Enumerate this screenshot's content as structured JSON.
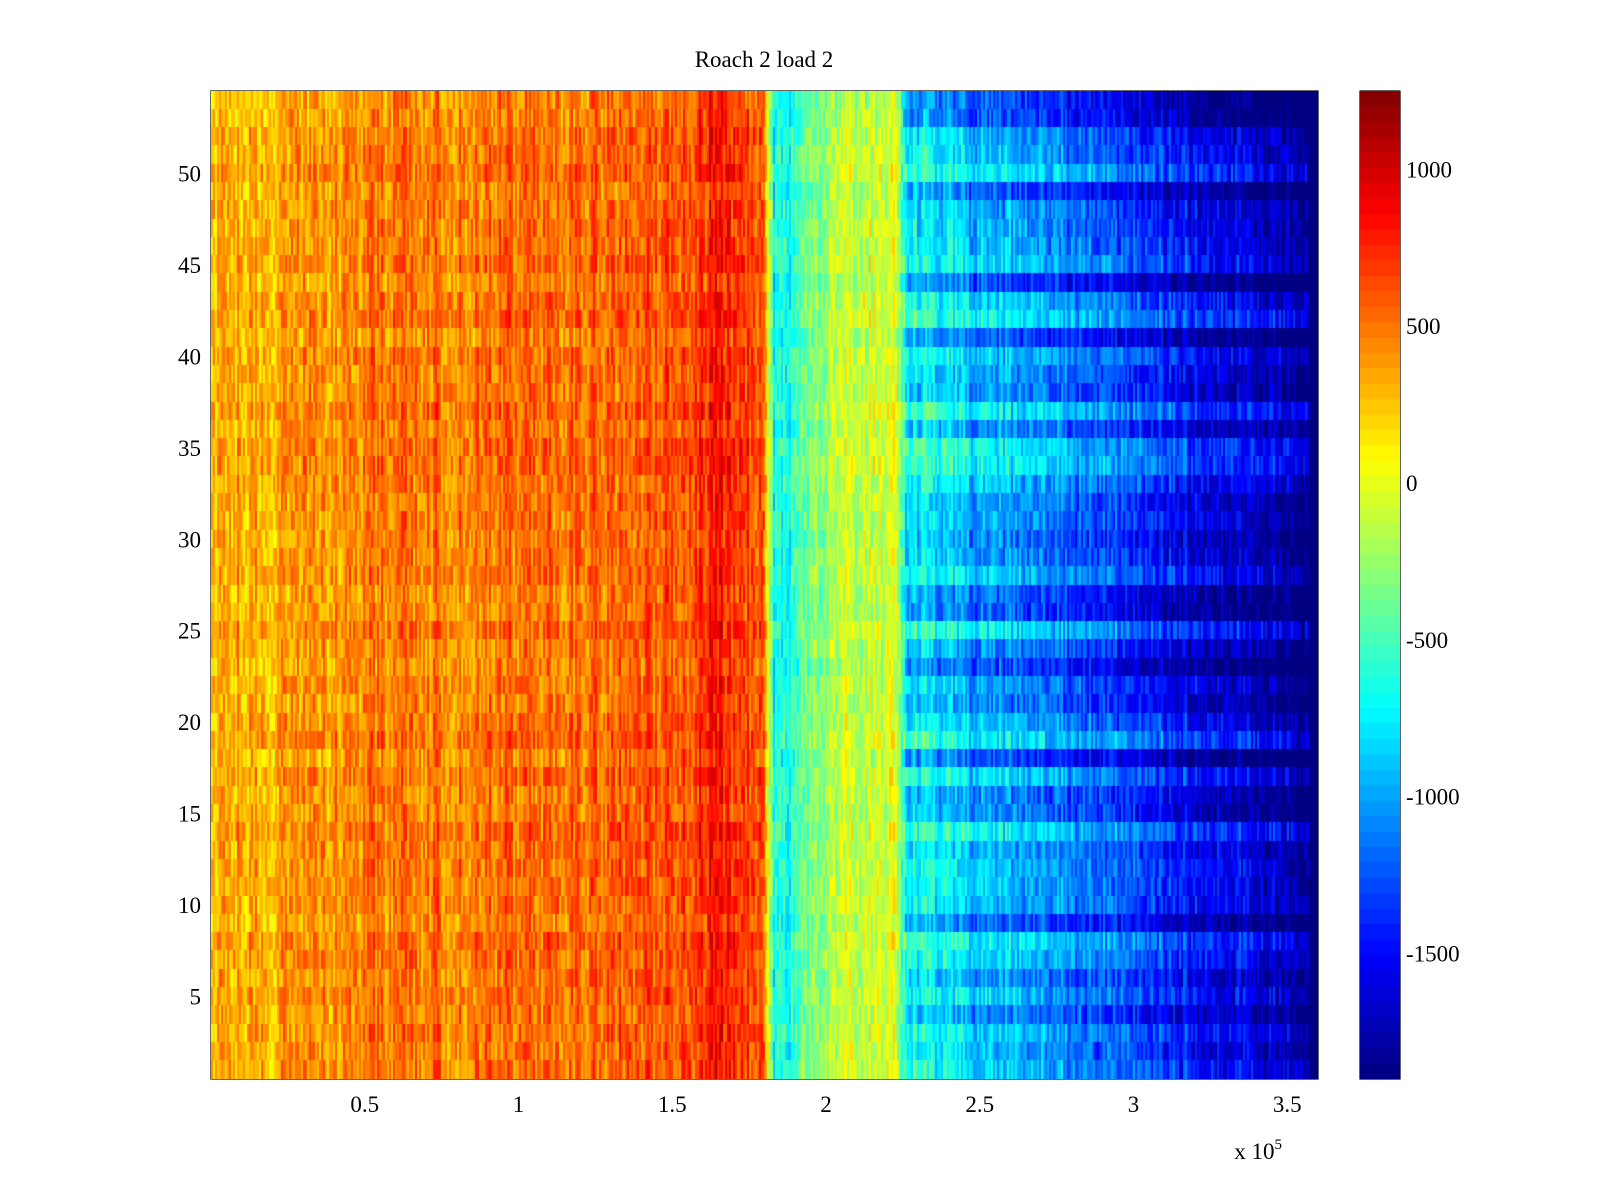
{
  "chart_data": {
    "type": "heatmap",
    "title": "Roach 2 load 2",
    "xlabel": "",
    "ylabel": "",
    "x_multiplier_label": "x 10",
    "x_multiplier_exponent": "5",
    "xlim": [
      0,
      3.6
    ],
    "ylim": [
      0.5,
      54.5
    ],
    "x_ticks": [
      0.5,
      1,
      1.5,
      2,
      2.5,
      3,
      3.5
    ],
    "x_tick_labels": [
      "0.5",
      "1",
      "1.5",
      "2",
      "2.5",
      "3",
      "3.5"
    ],
    "y_ticks": [
      5,
      10,
      15,
      20,
      25,
      30,
      35,
      40,
      45,
      50
    ],
    "y_tick_labels": [
      "5",
      "10",
      "15",
      "20",
      "25",
      "30",
      "35",
      "40",
      "45",
      "50"
    ],
    "rows": 54,
    "colormap": "jet",
    "clim": [
      -1900,
      1250
    ],
    "colorbar_ticks": [
      1000,
      500,
      0,
      -500,
      -1000,
      -1500
    ],
    "colorbar_tick_labels": [
      "1000",
      "500",
      "0",
      "-500",
      "-1000",
      "-1500"
    ],
    "column_profile": [
      {
        "x": 0.0,
        "value": 300
      },
      {
        "x": 0.3,
        "value": 420
      },
      {
        "x": 0.6,
        "value": 500
      },
      {
        "x": 1.0,
        "value": 520
      },
      {
        "x": 1.3,
        "value": 560
      },
      {
        "x": 1.5,
        "value": 640
      },
      {
        "x": 1.65,
        "value": 800
      },
      {
        "x": 1.8,
        "value": 620
      },
      {
        "x": 1.83,
        "value": -650
      },
      {
        "x": 1.9,
        "value": -550
      },
      {
        "x": 2.0,
        "value": -180
      },
      {
        "x": 2.1,
        "value": -80
      },
      {
        "x": 2.23,
        "value": -60
      },
      {
        "x": 2.26,
        "value": -700
      },
      {
        "x": 2.5,
        "value": -950
      },
      {
        "x": 2.8,
        "value": -1150
      },
      {
        "x": 3.1,
        "value": -1400
      },
      {
        "x": 3.35,
        "value": -1650
      },
      {
        "x": 3.6,
        "value": -1850
      }
    ],
    "colors": {
      "axis": "#000000",
      "background": "#ffffff"
    }
  }
}
